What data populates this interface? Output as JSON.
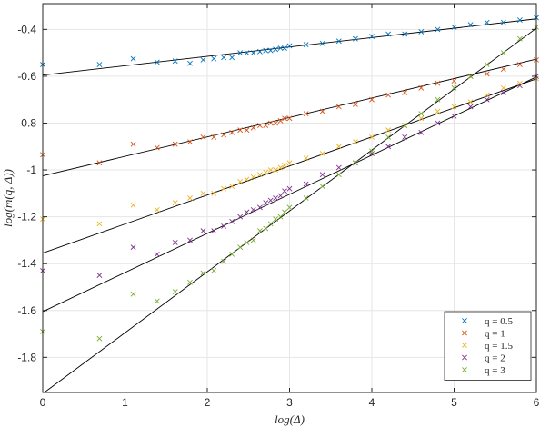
{
  "chart_data": {
    "type": "scatter",
    "title": "",
    "xlabel": "log(Δ)",
    "ylabel": "log(m(q, Δ))",
    "xlim": [
      0,
      6
    ],
    "ylim": [
      -1.95,
      -0.29
    ],
    "xticks": [
      0,
      1,
      2,
      3,
      4,
      5,
      6
    ],
    "xtick_labels": [
      "0",
      "1",
      "2",
      "3",
      "4",
      "5",
      "6"
    ],
    "yticks": [
      -1.8,
      -1.6,
      -1.4,
      -1.2,
      -1.0,
      -0.8,
      -0.6,
      -0.4
    ],
    "ytick_labels": [
      "-1.8",
      "-1.6",
      "-1.4",
      "-1.2",
      "-1",
      "-0.8",
      "-0.6",
      "-0.4"
    ],
    "grid": true,
    "legend_position": "bottom-right",
    "marker": "x",
    "series": [
      {
        "name": "q = 0.5",
        "color": "#0072BD",
        "intercept": -0.595,
        "slope": 0.04,
        "points": [
          [
            0,
            -0.55
          ],
          [
            0.69,
            -0.55
          ],
          [
            1.1,
            -0.525
          ],
          [
            1.39,
            -0.54
          ],
          [
            1.61,
            -0.535
          ],
          [
            1.79,
            -0.545
          ],
          [
            1.95,
            -0.53
          ],
          [
            2.08,
            -0.525
          ],
          [
            2.2,
            -0.52
          ],
          [
            2.3,
            -0.52
          ],
          [
            2.4,
            -0.5
          ],
          [
            2.48,
            -0.5
          ],
          [
            2.56,
            -0.5
          ],
          [
            2.64,
            -0.495
          ],
          [
            2.71,
            -0.49
          ],
          [
            2.77,
            -0.49
          ],
          [
            2.83,
            -0.485
          ],
          [
            2.89,
            -0.48
          ],
          [
            2.94,
            -0.48
          ],
          [
            3.0,
            -0.47
          ],
          [
            3.2,
            -0.465
          ],
          [
            3.4,
            -0.46
          ],
          [
            3.6,
            -0.45
          ],
          [
            3.8,
            -0.44
          ],
          [
            4.0,
            -0.43
          ],
          [
            4.2,
            -0.42
          ],
          [
            4.4,
            -0.42
          ],
          [
            4.6,
            -0.41
          ],
          [
            4.8,
            -0.4
          ],
          [
            5.0,
            -0.39
          ],
          [
            5.2,
            -0.38
          ],
          [
            5.4,
            -0.37
          ],
          [
            5.6,
            -0.37
          ],
          [
            5.8,
            -0.36
          ],
          [
            6.0,
            -0.35
          ]
        ]
      },
      {
        "name": "q = 1",
        "color": "#D95319",
        "intercept": -1.025,
        "slope": 0.083,
        "points": [
          [
            0,
            -0.935
          ],
          [
            0.69,
            -0.97
          ],
          [
            1.1,
            -0.89
          ],
          [
            1.39,
            -0.905
          ],
          [
            1.61,
            -0.89
          ],
          [
            1.79,
            -0.88
          ],
          [
            1.95,
            -0.86
          ],
          [
            2.08,
            -0.86
          ],
          [
            2.2,
            -0.85
          ],
          [
            2.3,
            -0.84
          ],
          [
            2.4,
            -0.83
          ],
          [
            2.48,
            -0.83
          ],
          [
            2.56,
            -0.82
          ],
          [
            2.64,
            -0.81
          ],
          [
            2.71,
            -0.81
          ],
          [
            2.77,
            -0.8
          ],
          [
            2.83,
            -0.8
          ],
          [
            2.89,
            -0.79
          ],
          [
            2.94,
            -0.78
          ],
          [
            3.0,
            -0.78
          ],
          [
            3.2,
            -0.76
          ],
          [
            3.4,
            -0.75
          ],
          [
            3.6,
            -0.73
          ],
          [
            3.8,
            -0.72
          ],
          [
            4.0,
            -0.7
          ],
          [
            4.2,
            -0.68
          ],
          [
            4.4,
            -0.67
          ],
          [
            4.6,
            -0.65
          ],
          [
            4.8,
            -0.63
          ],
          [
            5.0,
            -0.62
          ],
          [
            5.2,
            -0.6
          ],
          [
            5.4,
            -0.59
          ],
          [
            5.6,
            -0.57
          ],
          [
            5.8,
            -0.55
          ],
          [
            6.0,
            -0.53
          ]
        ]
      },
      {
        "name": "q = 1.5",
        "color": "#EDB120",
        "intercept": -1.355,
        "slope": 0.124,
        "points": [
          [
            0,
            -1.21
          ],
          [
            0.69,
            -1.23
          ],
          [
            1.1,
            -1.15
          ],
          [
            1.39,
            -1.17
          ],
          [
            1.61,
            -1.14
          ],
          [
            1.79,
            -1.12
          ],
          [
            1.95,
            -1.1
          ],
          [
            2.08,
            -1.1
          ],
          [
            2.2,
            -1.08
          ],
          [
            2.3,
            -1.07
          ],
          [
            2.4,
            -1.05
          ],
          [
            2.48,
            -1.04
          ],
          [
            2.56,
            -1.03
          ],
          [
            2.64,
            -1.02
          ],
          [
            2.71,
            -1.01
          ],
          [
            2.77,
            -1.0
          ],
          [
            2.83,
            -1.0
          ],
          [
            2.89,
            -0.99
          ],
          [
            2.94,
            -0.98
          ],
          [
            3.0,
            -0.97
          ],
          [
            3.2,
            -0.95
          ],
          [
            3.4,
            -0.93
          ],
          [
            3.6,
            -0.9
          ],
          [
            3.8,
            -0.88
          ],
          [
            4.0,
            -0.86
          ],
          [
            4.2,
            -0.83
          ],
          [
            4.4,
            -0.81
          ],
          [
            4.6,
            -0.78
          ],
          [
            4.8,
            -0.75
          ],
          [
            5.0,
            -0.73
          ],
          [
            5.2,
            -0.71
          ],
          [
            5.4,
            -0.68
          ],
          [
            5.6,
            -0.65
          ],
          [
            5.8,
            -0.63
          ],
          [
            6.0,
            -0.61
          ]
        ]
      },
      {
        "name": "q = 2",
        "color": "#7E2F8E",
        "intercept": -1.605,
        "slope": 0.167,
        "points": [
          [
            0,
            -1.43
          ],
          [
            0.69,
            -1.45
          ],
          [
            1.1,
            -1.33
          ],
          [
            1.39,
            -1.36
          ],
          [
            1.61,
            -1.31
          ],
          [
            1.79,
            -1.3
          ],
          [
            1.95,
            -1.26
          ],
          [
            2.08,
            -1.26
          ],
          [
            2.2,
            -1.24
          ],
          [
            2.3,
            -1.22
          ],
          [
            2.4,
            -1.2
          ],
          [
            2.48,
            -1.18
          ],
          [
            2.56,
            -1.17
          ],
          [
            2.64,
            -1.16
          ],
          [
            2.71,
            -1.14
          ],
          [
            2.77,
            -1.13
          ],
          [
            2.83,
            -1.12
          ],
          [
            2.89,
            -1.11
          ],
          [
            2.94,
            -1.09
          ],
          [
            3.0,
            -1.08
          ],
          [
            3.2,
            -1.06
          ],
          [
            3.4,
            -1.02
          ],
          [
            3.6,
            -0.99
          ],
          [
            3.8,
            -0.97
          ],
          [
            4.0,
            -0.93
          ],
          [
            4.2,
            -0.9
          ],
          [
            4.4,
            -0.86
          ],
          [
            4.6,
            -0.84
          ],
          [
            4.8,
            -0.8
          ],
          [
            5.0,
            -0.77
          ],
          [
            5.2,
            -0.73
          ],
          [
            5.4,
            -0.7
          ],
          [
            5.6,
            -0.67
          ],
          [
            5.8,
            -0.64
          ],
          [
            6.0,
            -0.6
          ]
        ]
      },
      {
        "name": "q = 3",
        "color": "#77AC30",
        "intercept": -1.955,
        "slope": 0.26,
        "points": [
          [
            0,
            -1.69
          ],
          [
            0.69,
            -1.72
          ],
          [
            1.1,
            -1.53
          ],
          [
            1.39,
            -1.56
          ],
          [
            1.61,
            -1.52
          ],
          [
            1.79,
            -1.48
          ],
          [
            1.95,
            -1.44
          ],
          [
            2.08,
            -1.43
          ],
          [
            2.2,
            -1.39
          ],
          [
            2.3,
            -1.36
          ],
          [
            2.4,
            -1.33
          ],
          [
            2.48,
            -1.31
          ],
          [
            2.56,
            -1.3
          ],
          [
            2.64,
            -1.26
          ],
          [
            2.71,
            -1.25
          ],
          [
            2.77,
            -1.23
          ],
          [
            2.83,
            -1.21
          ],
          [
            2.89,
            -1.2
          ],
          [
            2.94,
            -1.18
          ],
          [
            3.0,
            -1.16
          ],
          [
            3.2,
            -1.12
          ],
          [
            3.4,
            -1.07
          ],
          [
            3.6,
            -1.02
          ],
          [
            3.8,
            -0.97
          ],
          [
            4.0,
            -0.92
          ],
          [
            4.2,
            -0.86
          ],
          [
            4.4,
            -0.81
          ],
          [
            4.6,
            -0.76
          ],
          [
            4.8,
            -0.7
          ],
          [
            5.0,
            -0.65
          ],
          [
            5.2,
            -0.6
          ],
          [
            5.4,
            -0.55
          ],
          [
            5.6,
            -0.5
          ],
          [
            5.8,
            -0.44
          ],
          [
            6.0,
            -0.39
          ]
        ]
      }
    ]
  }
}
